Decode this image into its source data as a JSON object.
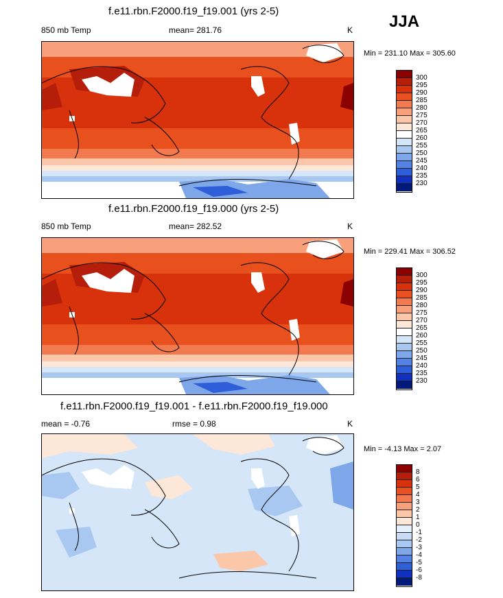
{
  "season": "JJA",
  "panels": [
    {
      "title": "f.e11.rbn.F2000.f19_f19.001 (yrs 2-5)",
      "variable": "850 mb Temp",
      "stat_text": "mean= 281.76",
      "units": "K",
      "minmax": "Min = 231.10 Max = 305.60"
    },
    {
      "title": "f.e11.rbn.F2000.f19_f19.000 (yrs 2-5)",
      "variable": "850 mb Temp",
      "stat_text": "mean= 282.52",
      "units": "K",
      "minmax": "Min = 229.41 Max = 306.52"
    },
    {
      "title": "f.e11.rbn.F2000.f19_f19.001 - f.e11.rbn.F2000.f19_f19.000",
      "variable": "mean =  -0.76",
      "stat_text": "rmse =   0.98",
      "units": "K",
      "minmax": "Min =  -4.13 Max =   2.07"
    }
  ],
  "chart_data": [
    {
      "type": "heatmap",
      "title": "f.e11.rbn.F2000.f19_f19.001 (yrs 2-5)",
      "variable": "850 mb Temp",
      "units": "K",
      "mean": 281.76,
      "min": 231.1,
      "max": 305.6,
      "colorbar_levels": [
        300,
        295,
        290,
        285,
        280,
        275,
        270,
        265,
        260,
        255,
        250,
        245,
        240,
        235,
        230
      ],
      "colorbar_colors": [
        "#8b0000",
        "#b41e0a",
        "#d7320c",
        "#e8501e",
        "#f27a4e",
        "#f8a07c",
        "#fcc6a8",
        "#fde7d8",
        "#ffffff",
        "#d4e6f8",
        "#a9c8f1",
        "#7ea7ea",
        "#5482e4",
        "#2f5ed9",
        "#1030c0",
        "#001a7a"
      ]
    },
    {
      "type": "heatmap",
      "title": "f.e11.rbn.F2000.f19_f19.000 (yrs 2-5)",
      "variable": "850 mb Temp",
      "units": "K",
      "mean": 282.52,
      "min": 229.41,
      "max": 306.52,
      "colorbar_levels": [
        300,
        295,
        290,
        285,
        280,
        275,
        270,
        265,
        260,
        255,
        250,
        245,
        240,
        235,
        230
      ],
      "colorbar_colors": [
        "#8b0000",
        "#b41e0a",
        "#d7320c",
        "#e8501e",
        "#f27a4e",
        "#f8a07c",
        "#fcc6a8",
        "#fde7d8",
        "#ffffff",
        "#d4e6f8",
        "#a9c8f1",
        "#7ea7ea",
        "#5482e4",
        "#2f5ed9",
        "#1030c0",
        "#001a7a"
      ]
    },
    {
      "type": "heatmap",
      "title": "f.e11.rbn.F2000.f19_f19.001 - f.e11.rbn.F2000.f19_f19.000",
      "units": "K",
      "mean": -0.76,
      "rmse": 0.98,
      "min": -4.13,
      "max": 2.07,
      "colorbar_levels": [
        "8",
        "6",
        "5",
        "4",
        "3",
        "2",
        "1",
        "0",
        "-1",
        "-2",
        "-3",
        "-4",
        "-5",
        "-6",
        "-8"
      ],
      "colorbar_colors": [
        "#8b0000",
        "#b41e0a",
        "#d7320c",
        "#e8501e",
        "#f27a4e",
        "#f8a07c",
        "#fcc6a8",
        "#fde7d8",
        "#e6f0fb",
        "#c8dcf5",
        "#a9c8f1",
        "#7ea7ea",
        "#5482e4",
        "#2f5ed9",
        "#1030c0",
        "#001a7a"
      ]
    }
  ]
}
